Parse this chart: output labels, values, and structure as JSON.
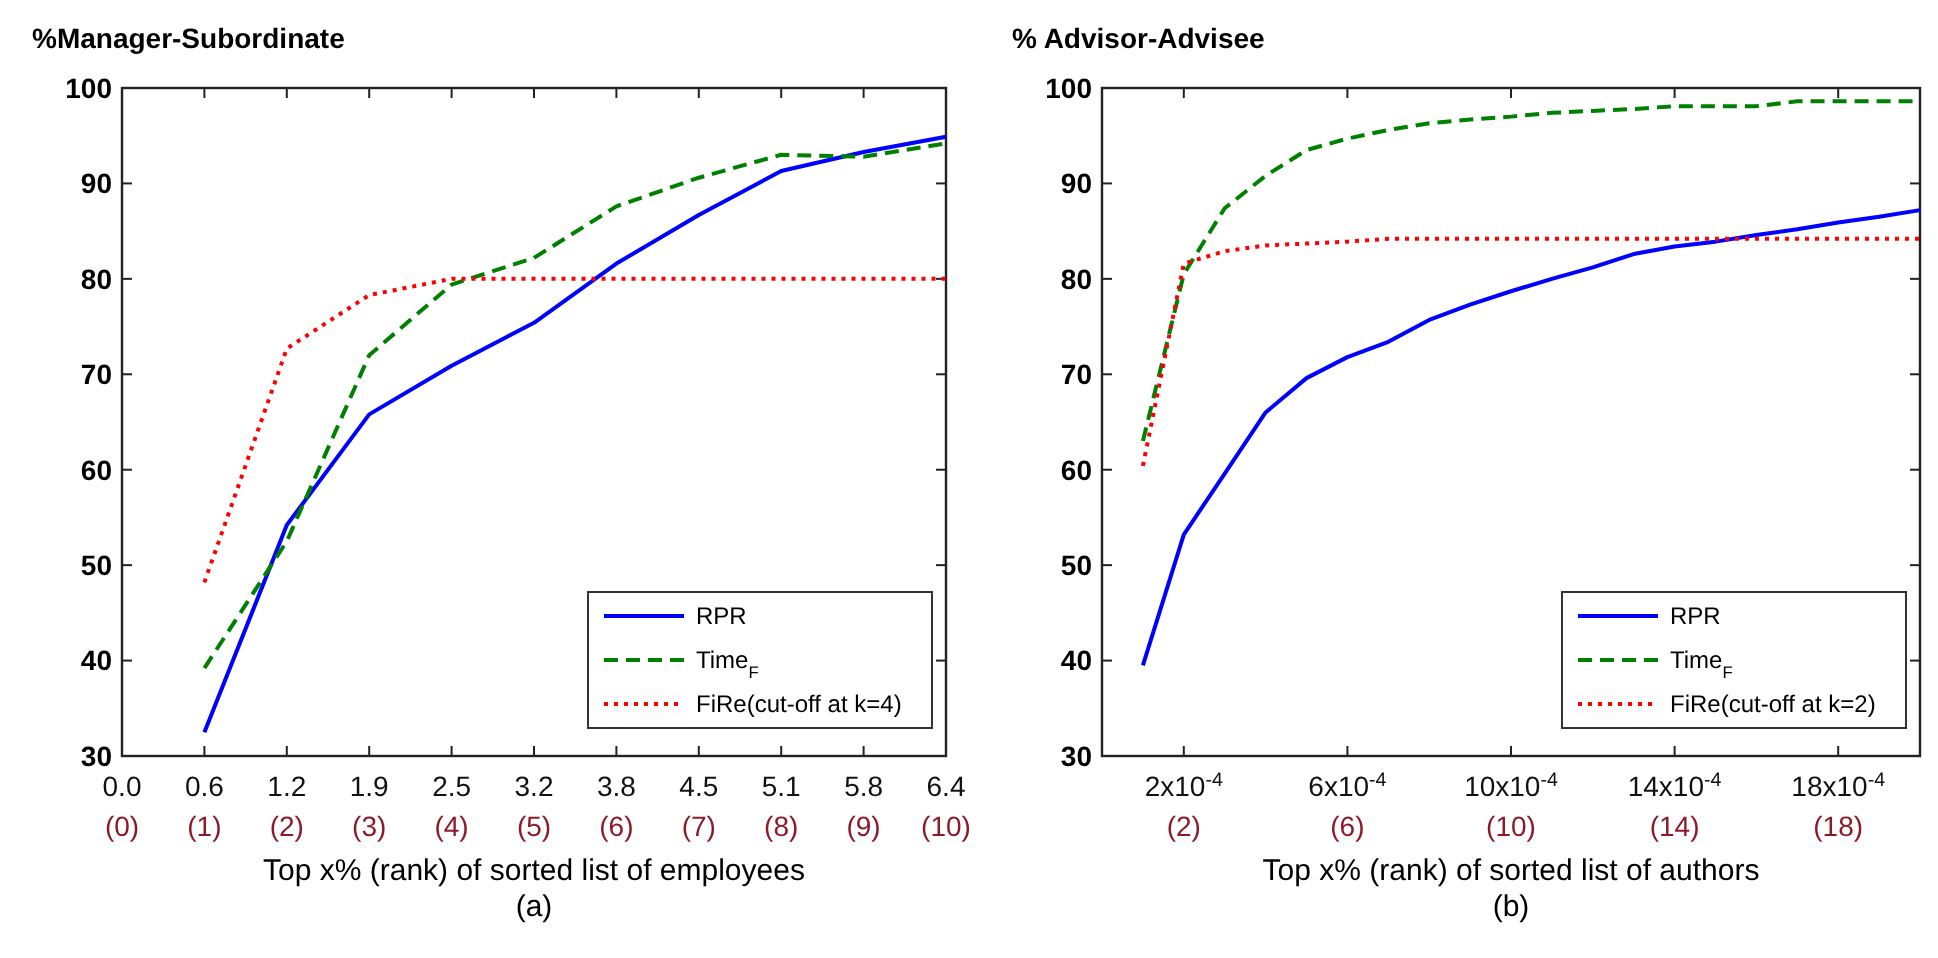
{
  "chart_data": [
    {
      "type": "line",
      "title": "%Manager-Subordinate",
      "xlabel": "Top x% (rank) of sorted list of employees",
      "annotations": [
        "(a)"
      ],
      "categories": [
        "0.0\n(0)",
        "0.6\n(1)",
        "1.2\n(2)",
        "1.9\n(3)",
        "2.5\n(4)",
        "3.2\n(5)",
        "3.8\n(6)",
        "4.5\n(7)",
        "5.1\n(8)",
        "5.8\n(9)",
        "6.4\n(10)"
      ],
      "ylim": [
        30,
        100
      ],
      "yticks": [
        30,
        40,
        50,
        60,
        70,
        80,
        90,
        100
      ],
      "legend": "bottom right",
      "series": [
        {
          "name": "RPR",
          "color": "#0000ff",
          "line_style": "solid",
          "values": [
            null,
            32.5,
            54.2,
            65.8,
            70.9,
            75.4,
            81.6,
            86.7,
            91.3,
            93.3,
            94.9
          ]
        },
        {
          "name": "Time$_{F}$",
          "color": "#008000",
          "line_style": "dashed",
          "values": [
            null,
            39.2,
            52.5,
            72,
            79.4,
            82.2,
            87.6,
            90.6,
            93,
            92.8,
            94.2
          ]
        },
        {
          "name": "FiRe(cut-off at k=4)",
          "color": "#ff0000",
          "line_style": "dotted",
          "values": [
            null,
            48.2,
            72.7,
            78.3,
            80,
            80,
            80,
            80,
            80,
            80,
            80
          ]
        }
      ]
    },
    {
      "type": "line",
      "title": "% Advisor-Advisee",
      "xlabel": "Top x% (rank) of sorted list of authors",
      "annotations": [
        "(b)"
      ],
      "categories": [
        null,
        null,
        "2x10$^{-4}$\n(2)",
        null,
        null,
        null,
        "6x10$^{-4}$\n(6)",
        null,
        null,
        null,
        "10x10$^{-4}$\n(10)",
        null,
        null,
        null,
        "14x10$^{-4}$\n(14)",
        null,
        null,
        null,
        "18x10$^{-4}$\n(18)",
        null,
        null
      ],
      "ylim": [
        30,
        100
      ],
      "yticks": [
        30,
        40,
        50,
        60,
        70,
        80,
        90,
        100
      ],
      "legend": "bottom right",
      "series": [
        {
          "name": "RPR",
          "color": "#0000ff",
          "line_style": "solid",
          "values": [
            null,
            39.5,
            53.2,
            59.6,
            66,
            69.6,
            71.8,
            73.4,
            75.7,
            77.3,
            78.7,
            80,
            81.2,
            82.6,
            83.4,
            83.9,
            84.6,
            85.2,
            85.9,
            86.5,
            87.2
          ]
        },
        {
          "name": "Time$_{F}$",
          "color": "#008000",
          "line_style": "dashed",
          "values": [
            null,
            63,
            80.5,
            87.4,
            90.8,
            93.5,
            94.7,
            95.6,
            96.3,
            96.7,
            97,
            97.4,
            97.6,
            97.8,
            98.1,
            98.1,
            98.1,
            98.6,
            98.6,
            98.6,
            98.6
          ]
        },
        {
          "name": "FiRe(cut-off at k=2)",
          "color": "#ff0000",
          "line_style": "dotted",
          "values": [
            null,
            60.4,
            81.6,
            82.9,
            83.5,
            83.7,
            83.9,
            84.2,
            84.2,
            84.2,
            84.2,
            84.2,
            84.2,
            84.2,
            84.2,
            84.2,
            84.2,
            84.2,
            84.2,
            84.2,
            84.2
          ]
        }
      ]
    }
  ]
}
